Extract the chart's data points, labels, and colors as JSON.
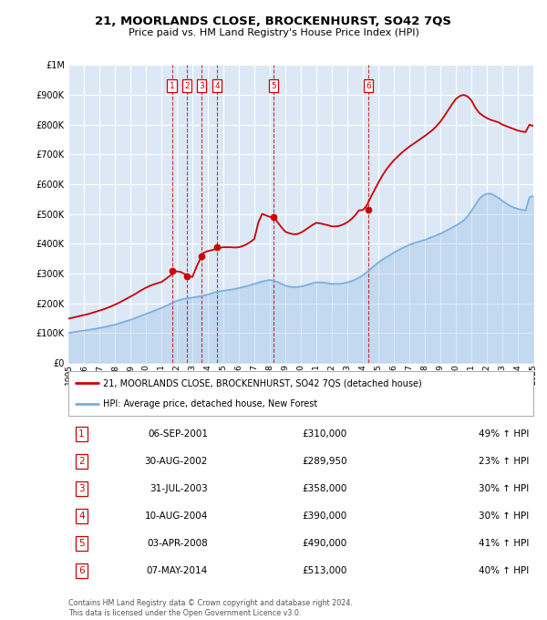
{
  "title": "21, MOORLANDS CLOSE, BROCKENHURST, SO42 7QS",
  "subtitle": "Price paid vs. HM Land Registry's House Price Index (HPI)",
  "background_color": "#ffffff",
  "chart_bg_color": "#dce8f5",
  "grid_color": "#ffffff",
  "ylim": [
    0,
    1000000
  ],
  "yticks": [
    0,
    100000,
    200000,
    300000,
    400000,
    500000,
    600000,
    700000,
    800000,
    900000,
    1000000
  ],
  "transactions": [
    {
      "num": 1,
      "price": 310000,
      "x_year": 2001.68
    },
    {
      "num": 2,
      "price": 289950,
      "x_year": 2002.66
    },
    {
      "num": 3,
      "price": 358000,
      "x_year": 2003.58
    },
    {
      "num": 4,
      "price": 390000,
      "x_year": 2004.61
    },
    {
      "num": 5,
      "price": 490000,
      "x_year": 2008.25
    },
    {
      "num": 6,
      "price": 513000,
      "x_year": 2014.35
    }
  ],
  "legend_label_red": "21, MOORLANDS CLOSE, BROCKENHURST, SO42 7QS (detached house)",
  "legend_label_blue": "HPI: Average price, detached house, New Forest",
  "footnote": "Contains HM Land Registry data © Crown copyright and database right 2024.\nThis data is licensed under the Open Government Licence v3.0.",
  "red_line_color": "#cc0000",
  "blue_line_color": "#7aadde",
  "transaction_box_color": "#cc0000",
  "dashed_line_color": "#cc0000",
  "hpi_x": [
    1995.0,
    1995.25,
    1995.5,
    1995.75,
    1996.0,
    1996.25,
    1996.5,
    1996.75,
    1997.0,
    1997.25,
    1997.5,
    1997.75,
    1998.0,
    1998.25,
    1998.5,
    1998.75,
    1999.0,
    1999.25,
    1999.5,
    1999.75,
    2000.0,
    2000.25,
    2000.5,
    2000.75,
    2001.0,
    2001.25,
    2001.5,
    2001.75,
    2002.0,
    2002.25,
    2002.5,
    2002.75,
    2003.0,
    2003.25,
    2003.5,
    2003.75,
    2004.0,
    2004.25,
    2004.5,
    2004.75,
    2005.0,
    2005.25,
    2005.5,
    2005.75,
    2006.0,
    2006.25,
    2006.5,
    2006.75,
    2007.0,
    2007.25,
    2007.5,
    2007.75,
    2008.0,
    2008.25,
    2008.5,
    2008.75,
    2009.0,
    2009.25,
    2009.5,
    2009.75,
    2010.0,
    2010.25,
    2010.5,
    2010.75,
    2011.0,
    2011.25,
    2011.5,
    2011.75,
    2012.0,
    2012.25,
    2012.5,
    2012.75,
    2013.0,
    2013.25,
    2013.5,
    2013.75,
    2014.0,
    2014.25,
    2014.5,
    2014.75,
    2015.0,
    2015.25,
    2015.5,
    2015.75,
    2016.0,
    2016.25,
    2016.5,
    2016.75,
    2017.0,
    2017.25,
    2017.5,
    2017.75,
    2018.0,
    2018.25,
    2018.5,
    2018.75,
    2019.0,
    2019.25,
    2019.5,
    2019.75,
    2020.0,
    2020.25,
    2020.5,
    2020.75,
    2021.0,
    2021.25,
    2021.5,
    2021.75,
    2022.0,
    2022.25,
    2022.5,
    2022.75,
    2023.0,
    2023.25,
    2023.5,
    2023.75,
    2024.0,
    2024.25,
    2024.5,
    2024.75,
    2025.0
  ],
  "hpi_y": [
    100000,
    102000,
    104000,
    106000,
    108000,
    110000,
    112000,
    114000,
    117000,
    119000,
    122000,
    125000,
    128000,
    132000,
    136000,
    140000,
    144000,
    149000,
    154000,
    159000,
    164000,
    169000,
    174000,
    179000,
    184000,
    190000,
    196000,
    202000,
    208000,
    212000,
    215000,
    217000,
    219000,
    221000,
    223000,
    226000,
    229000,
    233000,
    237000,
    240000,
    242000,
    244000,
    246000,
    248000,
    251000,
    254000,
    257000,
    261000,
    265000,
    269000,
    273000,
    276000,
    278000,
    276000,
    271000,
    265000,
    259000,
    256000,
    254000,
    254000,
    256000,
    259000,
    263000,
    267000,
    270000,
    270000,
    269000,
    267000,
    265000,
    265000,
    265000,
    267000,
    270000,
    274000,
    279000,
    286000,
    294000,
    304000,
    315000,
    326000,
    337000,
    346000,
    354000,
    362000,
    370000,
    377000,
    384000,
    390000,
    396000,
    401000,
    405000,
    409000,
    413000,
    418000,
    423000,
    428000,
    434000,
    440000,
    447000,
    454000,
    461000,
    469000,
    478000,
    492000,
    510000,
    530000,
    550000,
    562000,
    568000,
    568000,
    562000,
    554000,
    544000,
    535000,
    527000,
    521000,
    517000,
    514000,
    512000,
    556000,
    560000
  ],
  "price_x": [
    1995.0,
    1995.25,
    1995.5,
    1995.75,
    1996.0,
    1996.25,
    1996.5,
    1996.75,
    1997.0,
    1997.25,
    1997.5,
    1997.75,
    1998.0,
    1998.25,
    1998.5,
    1998.75,
    1999.0,
    1999.25,
    1999.5,
    1999.75,
    2000.0,
    2000.25,
    2000.5,
    2000.75,
    2001.0,
    2001.25,
    2001.5,
    2001.75,
    2002.0,
    2002.25,
    2002.5,
    2002.75,
    2003.0,
    2003.25,
    2003.5,
    2003.75,
    2004.0,
    2004.25,
    2004.5,
    2004.75,
    2005.0,
    2005.25,
    2005.5,
    2005.75,
    2006.0,
    2006.25,
    2006.5,
    2006.75,
    2007.0,
    2007.25,
    2007.5,
    2007.75,
    2008.0,
    2008.25,
    2008.5,
    2008.75,
    2009.0,
    2009.25,
    2009.5,
    2009.75,
    2010.0,
    2010.25,
    2010.5,
    2010.75,
    2011.0,
    2011.25,
    2011.5,
    2011.75,
    2012.0,
    2012.25,
    2012.5,
    2012.75,
    2013.0,
    2013.25,
    2013.5,
    2013.75,
    2014.0,
    2014.25,
    2014.5,
    2014.75,
    2015.0,
    2015.25,
    2015.5,
    2015.75,
    2016.0,
    2016.25,
    2016.5,
    2016.75,
    2017.0,
    2017.25,
    2017.5,
    2017.75,
    2018.0,
    2018.25,
    2018.5,
    2018.75,
    2019.0,
    2019.25,
    2019.5,
    2019.75,
    2020.0,
    2020.25,
    2020.5,
    2020.75,
    2021.0,
    2021.25,
    2021.5,
    2021.75,
    2022.0,
    2022.25,
    2022.5,
    2022.75,
    2023.0,
    2023.25,
    2023.5,
    2023.75,
    2024.0,
    2024.25,
    2024.5,
    2024.75,
    2025.0
  ],
  "price_y": [
    148000,
    151000,
    154000,
    157000,
    160000,
    163000,
    167000,
    171000,
    175000,
    179000,
    184000,
    189000,
    195000,
    201000,
    208000,
    215000,
    222000,
    229000,
    237000,
    245000,
    252000,
    258000,
    263000,
    267000,
    271000,
    280000,
    290000,
    300000,
    307000,
    305000,
    298000,
    292000,
    288000,
    320000,
    348000,
    370000,
    375000,
    378000,
    382000,
    386000,
    388000,
    388000,
    388000,
    387000,
    388000,
    392000,
    398000,
    406000,
    416000,
    470000,
    500000,
    495000,
    490000,
    490000,
    472000,
    455000,
    440000,
    435000,
    432000,
    432000,
    437000,
    445000,
    454000,
    463000,
    470000,
    468000,
    465000,
    462000,
    458000,
    458000,
    460000,
    465000,
    472000,
    482000,
    495000,
    512000,
    513000,
    528000,
    555000,
    580000,
    605000,
    628000,
    648000,
    665000,
    680000,
    693000,
    705000,
    716000,
    726000,
    735000,
    744000,
    753000,
    762000,
    772000,
    782000,
    795000,
    810000,
    828000,
    848000,
    868000,
    886000,
    896000,
    900000,
    895000,
    882000,
    858000,
    840000,
    830000,
    822000,
    816000,
    812000,
    808000,
    800000,
    795000,
    790000,
    785000,
    780000,
    777000,
    775000,
    800000,
    795000
  ],
  "xmin": 1995,
  "xmax": 2025,
  "xticks": [
    1995,
    1996,
    1997,
    1998,
    1999,
    2000,
    2001,
    2002,
    2003,
    2004,
    2005,
    2006,
    2007,
    2008,
    2009,
    2010,
    2011,
    2012,
    2013,
    2014,
    2015,
    2016,
    2017,
    2018,
    2019,
    2020,
    2021,
    2022,
    2023,
    2024,
    2025
  ],
  "table_rows": [
    {
      "num": 1,
      "date": "06-SEP-2001",
      "price": "£310,000",
      "pct": "49% ↑ HPI"
    },
    {
      "num": 2,
      "date": "30-AUG-2002",
      "price": "£289,950",
      "pct": "23% ↑ HPI"
    },
    {
      "num": 3,
      "date": "31-JUL-2003",
      "price": "£358,000",
      "pct": "30% ↑ HPI"
    },
    {
      "num": 4,
      "date": "10-AUG-2004",
      "price": "£390,000",
      "pct": "30% ↑ HPI"
    },
    {
      "num": 5,
      "date": "03-APR-2008",
      "price": "£490,000",
      "pct": "41% ↑ HPI"
    },
    {
      "num": 6,
      "date": "07-MAY-2014",
      "price": "£513,000",
      "pct": "40% ↑ HPI"
    }
  ]
}
